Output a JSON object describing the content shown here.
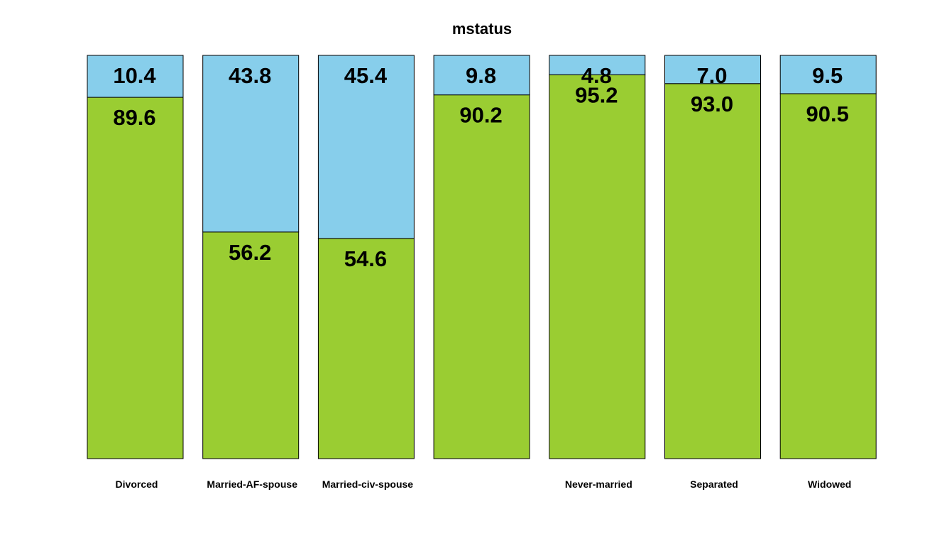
{
  "chart_data": {
    "type": "bar",
    "stacked": true,
    "title": "mstatus",
    "xlabel": "",
    "ylabel": "",
    "ylim": [
      0,
      100
    ],
    "grid": false,
    "legend": "none",
    "categories": [
      "Divorced",
      "Married-AF-spouse",
      "Married-civ-spouse",
      "",
      "Never-married",
      "Separated",
      "Widowed"
    ],
    "series": [
      {
        "color": "#9acd32",
        "values": [
          89.6,
          56.2,
          54.6,
          90.2,
          95.2,
          93.0,
          90.5
        ],
        "labels": [
          "89.6",
          "56.2",
          "54.6",
          "90.2",
          "95.2",
          "93.0",
          "90.5"
        ]
      },
      {
        "color": "#87ceeb",
        "values": [
          10.4,
          43.8,
          45.4,
          9.8,
          4.8,
          7.0,
          9.5
        ],
        "labels": [
          "10.4",
          "43.8",
          "45.4",
          "9.8",
          "4.8",
          "7.0",
          "9.5"
        ]
      }
    ]
  }
}
